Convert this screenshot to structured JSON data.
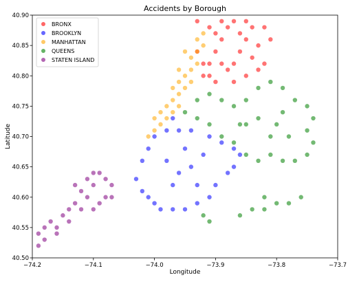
{
  "chart_data": {
    "type": "scatter",
    "title": "Accidents by Borough",
    "xlabel": "Longitude",
    "ylabel": "Latitude",
    "xlim": [
      -74.2,
      -73.7
    ],
    "ylim": [
      40.5,
      40.9
    ],
    "xticks": [
      -74.2,
      -74.1,
      -74.0,
      -73.9,
      -73.8,
      -73.7
    ],
    "yticks": [
      40.5,
      40.55,
      40.6,
      40.65,
      40.7,
      40.75,
      40.8,
      40.85,
      40.9
    ],
    "xtick_labels": [
      "−74.2",
      "−74.1",
      "−74.0",
      "−73.9",
      "−73.8",
      "−73.7"
    ],
    "ytick_labels": [
      "40.50",
      "40.55",
      "40.60",
      "40.65",
      "40.70",
      "40.75",
      "40.80",
      "40.85",
      "40.90"
    ],
    "grid": false,
    "legend_position": "top-left",
    "series": [
      {
        "name": "BRONX",
        "color": "#ff0000",
        "points": [
          [
            -73.92,
            40.8
          ],
          [
            -73.91,
            40.82
          ],
          [
            -73.9,
            40.84
          ],
          [
            -73.9,
            40.87
          ],
          [
            -73.89,
            40.86
          ],
          [
            -73.88,
            40.88
          ],
          [
            -73.87,
            40.89
          ],
          [
            -73.86,
            40.87
          ],
          [
            -73.85,
            40.86
          ],
          [
            -73.86,
            40.84
          ],
          [
            -73.87,
            40.82
          ],
          [
            -73.88,
            40.81
          ],
          [
            -73.89,
            40.82
          ],
          [
            -73.91,
            40.8
          ],
          [
            -73.92,
            40.82
          ],
          [
            -73.93,
            40.84
          ],
          [
            -73.84,
            40.88
          ],
          [
            -73.83,
            40.85
          ],
          [
            -73.82,
            40.82
          ],
          [
            -73.84,
            40.83
          ],
          [
            -73.81,
            40.86
          ],
          [
            -73.83,
            40.81
          ],
          [
            -73.85,
            40.8
          ],
          [
            -73.87,
            40.79
          ],
          [
            -73.9,
            40.79
          ],
          [
            -73.91,
            40.88
          ],
          [
            -73.93,
            40.89
          ],
          [
            -73.89,
            40.89
          ],
          [
            -73.85,
            40.89
          ],
          [
            -73.82,
            40.88
          ]
        ]
      },
      {
        "name": "BROOKLYN",
        "color": "#0000ff",
        "points": [
          [
            -74.03,
            40.63
          ],
          [
            -74.02,
            40.61
          ],
          [
            -74.01,
            40.6
          ],
          [
            -74.0,
            40.59
          ],
          [
            -73.99,
            40.58
          ],
          [
            -73.97,
            40.58
          ],
          [
            -73.95,
            40.58
          ],
          [
            -73.93,
            40.59
          ],
          [
            -73.91,
            40.6
          ],
          [
            -73.9,
            40.62
          ],
          [
            -73.88,
            40.64
          ],
          [
            -73.87,
            40.65
          ],
          [
            -73.86,
            40.67
          ],
          [
            -73.87,
            40.68
          ],
          [
            -73.89,
            40.69
          ],
          [
            -73.91,
            40.7
          ],
          [
            -73.94,
            40.71
          ],
          [
            -73.96,
            40.71
          ],
          [
            -73.98,
            40.71
          ],
          [
            -74.0,
            40.7
          ],
          [
            -74.01,
            40.68
          ],
          [
            -74.02,
            40.66
          ],
          [
            -73.98,
            40.66
          ],
          [
            -73.96,
            40.64
          ],
          [
            -73.94,
            40.65
          ],
          [
            -73.92,
            40.67
          ],
          [
            -73.95,
            40.68
          ],
          [
            -73.97,
            40.62
          ],
          [
            -73.93,
            40.62
          ],
          [
            -73.97,
            40.73
          ]
        ]
      },
      {
        "name": "MANHATTAN",
        "color": "#ffa500",
        "points": [
          [
            -74.01,
            40.7
          ],
          [
            -74.0,
            40.71
          ],
          [
            -73.99,
            40.72
          ],
          [
            -73.98,
            40.73
          ],
          [
            -73.99,
            40.74
          ],
          [
            -73.98,
            40.75
          ],
          [
            -73.97,
            40.76
          ],
          [
            -73.96,
            40.77
          ],
          [
            -73.95,
            40.78
          ],
          [
            -73.96,
            40.79
          ],
          [
            -73.95,
            40.8
          ],
          [
            -73.94,
            40.81
          ],
          [
            -73.93,
            40.82
          ],
          [
            -73.94,
            40.83
          ],
          [
            -73.93,
            40.84
          ],
          [
            -73.92,
            40.85
          ],
          [
            -73.93,
            40.86
          ],
          [
            -73.92,
            40.87
          ],
          [
            -74.0,
            40.73
          ],
          [
            -73.97,
            40.74
          ],
          [
            -73.96,
            40.75
          ],
          [
            -73.97,
            40.78
          ],
          [
            -73.94,
            40.79
          ],
          [
            -73.96,
            40.81
          ],
          [
            -73.95,
            40.84
          ]
        ]
      },
      {
        "name": "QUEENS",
        "color": "#008000",
        "points": [
          [
            -73.95,
            40.74
          ],
          [
            -73.93,
            40.76
          ],
          [
            -73.91,
            40.77
          ],
          [
            -73.89,
            40.76
          ],
          [
            -73.87,
            40.75
          ],
          [
            -73.85,
            40.76
          ],
          [
            -73.83,
            40.78
          ],
          [
            -73.81,
            40.79
          ],
          [
            -73.79,
            40.78
          ],
          [
            -73.77,
            40.76
          ],
          [
            -73.75,
            40.75
          ],
          [
            -73.74,
            40.73
          ],
          [
            -73.75,
            40.71
          ],
          [
            -73.74,
            40.69
          ],
          [
            -73.75,
            40.67
          ],
          [
            -73.77,
            40.66
          ],
          [
            -73.79,
            40.66
          ],
          [
            -73.81,
            40.67
          ],
          [
            -73.83,
            40.66
          ],
          [
            -73.85,
            40.67
          ],
          [
            -73.87,
            40.69
          ],
          [
            -73.89,
            40.7
          ],
          [
            -73.91,
            40.72
          ],
          [
            -73.93,
            40.73
          ],
          [
            -73.86,
            40.72
          ],
          [
            -73.83,
            40.73
          ],
          [
            -73.8,
            40.72
          ],
          [
            -73.78,
            40.7
          ],
          [
            -73.81,
            40.7
          ],
          [
            -73.79,
            40.74
          ],
          [
            -73.76,
            40.6
          ],
          [
            -73.78,
            40.59
          ],
          [
            -73.8,
            40.59
          ],
          [
            -73.82,
            40.58
          ],
          [
            -73.84,
            40.58
          ],
          [
            -73.86,
            40.57
          ],
          [
            -73.82,
            40.6
          ],
          [
            -73.92,
            40.57
          ],
          [
            -73.91,
            40.56
          ],
          [
            -73.85,
            40.72
          ]
        ]
      },
      {
        "name": "STATEN ISLAND",
        "color": "#800080",
        "points": [
          [
            -74.19,
            40.54
          ],
          [
            -74.18,
            40.55
          ],
          [
            -74.17,
            40.56
          ],
          [
            -74.16,
            40.55
          ],
          [
            -74.15,
            40.57
          ],
          [
            -74.14,
            40.58
          ],
          [
            -74.13,
            40.59
          ],
          [
            -74.12,
            40.61
          ],
          [
            -74.11,
            40.63
          ],
          [
            -74.1,
            40.64
          ],
          [
            -74.09,
            40.64
          ],
          [
            -74.08,
            40.63
          ],
          [
            -74.07,
            40.62
          ],
          [
            -74.08,
            40.6
          ],
          [
            -74.09,
            40.59
          ],
          [
            -74.1,
            40.58
          ],
          [
            -74.12,
            40.58
          ],
          [
            -74.14,
            40.56
          ],
          [
            -74.16,
            40.54
          ],
          [
            -74.18,
            40.53
          ],
          [
            -74.19,
            40.52
          ],
          [
            -74.11,
            40.6
          ],
          [
            -74.13,
            40.62
          ],
          [
            -74.1,
            40.62
          ],
          [
            -74.07,
            40.6
          ]
        ]
      }
    ]
  }
}
